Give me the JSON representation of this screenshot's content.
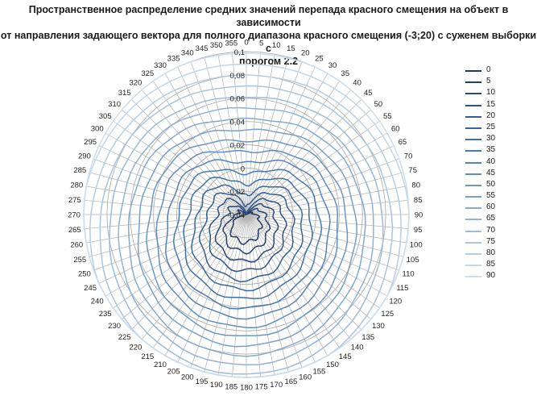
{
  "title": {
    "line1": "Пространственное распределение средних значений перепада красного смещения на объект в зависимости",
    "line2": "от направления задающего вектора для полного диапазона красного смещения (-3;20)  с суженем выборки с",
    "line3": "порогом 2.2"
  },
  "chart_data": {
    "type": "radar",
    "title": "Пространственное распределение средних значений перепада красного смещения на объект в зависимости от направления задающего вектора для полного диапазона красного смещения (-3;20)  с суженем выборки с порогом 2.2",
    "angles": [
      0,
      5,
      10,
      15,
      20,
      25,
      30,
      35,
      40,
      45,
      50,
      55,
      60,
      65,
      70,
      75,
      80,
      85,
      90,
      95,
      100,
      105,
      110,
      115,
      120,
      125,
      130,
      135,
      140,
      145,
      150,
      155,
      160,
      165,
      170,
      175,
      180,
      185,
      190,
      195,
      200,
      205,
      210,
      215,
      220,
      225,
      230,
      235,
      240,
      245,
      250,
      255,
      260,
      265,
      270,
      275,
      280,
      285,
      290,
      295,
      300,
      305,
      310,
      315,
      320,
      325,
      330,
      335,
      340,
      345,
      350,
      355
    ],
    "radial_ticks": [
      "-0,04",
      "-0,02",
      "0",
      "0,02",
      "0,04",
      "0,06",
      "0,08",
      "0,1"
    ],
    "r_range": [
      -0.04,
      0.1
    ],
    "grid": true,
    "legend_position": "right",
    "series": [
      {
        "name": "0",
        "color": "#1F3864"
      },
      {
        "name": "5",
        "color": "#22406F"
      },
      {
        "name": "10",
        "color": "#264A7C"
      },
      {
        "name": "15",
        "color": "#2A5489"
      },
      {
        "name": "20",
        "color": "#2F5D95"
      },
      {
        "name": "25",
        "color": "#3667A0"
      },
      {
        "name": "30",
        "color": "#3E70A8"
      },
      {
        "name": "35",
        "color": "#4879B0"
      },
      {
        "name": "40",
        "color": "#5383B7"
      },
      {
        "name": "45",
        "color": "#5F8DBE"
      },
      {
        "name": "50",
        "color": "#6B96C4"
      },
      {
        "name": "55",
        "color": "#78A0CA"
      },
      {
        "name": "60",
        "color": "#85A9CF"
      },
      {
        "name": "65",
        "color": "#92B2D4"
      },
      {
        "name": "70",
        "color": "#9FBBD9"
      },
      {
        "name": "75",
        "color": "#ABC4DE"
      },
      {
        "name": "80",
        "color": "#B7CDE3"
      },
      {
        "name": "85",
        "color": "#C3D5E8"
      },
      {
        "name": "90",
        "color": "#CEDDED"
      }
    ]
  }
}
